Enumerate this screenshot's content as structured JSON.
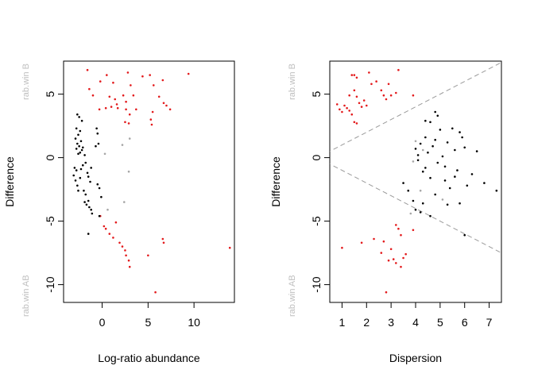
{
  "chart_data": [
    {
      "type": "scatter",
      "xlabel": "Log-ratio abundance",
      "ylabel": "Difference",
      "xlim": [
        -4.2,
        14.4
      ],
      "ylim": [
        -11.4,
        7.6
      ],
      "xticks": [
        "0",
        "5",
        "10"
      ],
      "xtick_values": [
        0,
        5,
        10
      ],
      "yticks": [
        "-10",
        "-5",
        "0",
        "5"
      ],
      "ytick_values": [
        -10,
        -5,
        0,
        5
      ],
      "group_labels": {
        "top": "rab.win B",
        "bottom": "rab.win AB"
      },
      "colors": {
        "significant": "#e31a1c",
        "nonsignificant": "#000000",
        "borderline": "#a6a6a6"
      },
      "series": [
        {
          "name": "",
          "color": "#e31a1c",
          "points": [
            [
              -1.6,
              6.9
            ],
            [
              -1.4,
              5.4
            ],
            [
              -1.0,
              4.9
            ],
            [
              -0.2,
              6.0
            ],
            [
              0.5,
              6.5
            ],
            [
              0.8,
              4.8
            ],
            [
              1.2,
              5.9
            ],
            [
              1.4,
              4.6
            ],
            [
              1.6,
              4.2
            ],
            [
              2.3,
              4.9
            ],
            [
              2.6,
              4.4
            ],
            [
              2.8,
              6.7
            ],
            [
              3.1,
              5.7
            ],
            [
              3.4,
              4.9
            ],
            [
              3.7,
              3.8
            ],
            [
              4.4,
              6.4
            ],
            [
              5.2,
              6.5
            ],
            [
              5.6,
              5.7
            ],
            [
              6.2,
              4.8
            ],
            [
              6.6,
              6.1
            ],
            [
              6.7,
              4.3
            ],
            [
              7.0,
              4.1
            ],
            [
              7.4,
              3.8
            ],
            [
              9.4,
              6.6
            ],
            [
              -0.3,
              3.8
            ],
            [
              0.4,
              3.9
            ],
            [
              1.0,
              4.0
            ],
            [
              1.7,
              3.9
            ],
            [
              2.6,
              3.8
            ],
            [
              3.0,
              3.4
            ],
            [
              5.5,
              3.6
            ],
            [
              5.3,
              3.0
            ],
            [
              2.5,
              2.8
            ],
            [
              2.9,
              2.7
            ],
            [
              5.4,
              2.6
            ],
            [
              -0.2,
              -4.6
            ],
            [
              0.2,
              -5.4
            ],
            [
              0.4,
              -5.6
            ],
            [
              0.8,
              -6.0
            ],
            [
              1.2,
              -6.3
            ],
            [
              1.5,
              -5.1
            ],
            [
              1.9,
              -6.7
            ],
            [
              2.2,
              -7.0
            ],
            [
              2.5,
              -7.3
            ],
            [
              2.6,
              -7.7
            ],
            [
              2.9,
              -8.1
            ],
            [
              3.0,
              -8.6
            ],
            [
              5.0,
              -7.7
            ],
            [
              5.8,
              -10.6
            ],
            [
              6.6,
              -6.4
            ],
            [
              6.7,
              -6.7
            ],
            [
              13.9,
              -7.1
            ]
          ]
        },
        {
          "name": "",
          "color": "#000000",
          "points": [
            [
              -2.7,
              3.4
            ],
            [
              -2.5,
              3.2
            ],
            [
              -2.2,
              2.9
            ],
            [
              -2.8,
              2.3
            ],
            [
              -2.4,
              2.1
            ],
            [
              -2.6,
              1.8
            ],
            [
              -2.9,
              1.5
            ],
            [
              -2.3,
              1.3
            ],
            [
              -2.7,
              1.1
            ],
            [
              -2.5,
              0.9
            ],
            [
              -2.8,
              0.7
            ],
            [
              -2.2,
              0.6
            ],
            [
              -2.4,
              0.4
            ],
            [
              -2.1,
              0.8
            ],
            [
              -1.9,
              0.2
            ],
            [
              -2.6,
              0.3
            ],
            [
              -3.0,
              -0.8
            ],
            [
              -2.8,
              -1.0
            ],
            [
              -3.1,
              -1.4
            ],
            [
              -2.9,
              -1.8
            ],
            [
              -2.7,
              -2.2
            ],
            [
              -2.6,
              -2.6
            ],
            [
              -2.4,
              -1.6
            ],
            [
              -2.3,
              -0.9
            ],
            [
              -2.1,
              -0.6
            ],
            [
              -1.8,
              -0.4
            ],
            [
              -1.6,
              -1.2
            ],
            [
              -1.5,
              -1.5
            ],
            [
              -1.3,
              -1.9
            ],
            [
              -1.2,
              -0.8
            ],
            [
              -1.9,
              -3.5
            ],
            [
              -1.7,
              -3.7
            ],
            [
              -1.5,
              -3.4
            ],
            [
              -1.4,
              -3.9
            ],
            [
              -1.2,
              -4.1
            ],
            [
              -1.1,
              -4.4
            ],
            [
              -1.5,
              -6.0
            ],
            [
              -0.6,
              2.3
            ],
            [
              -0.5,
              1.9
            ],
            [
              -0.4,
              1.1
            ],
            [
              -0.7,
              0.9
            ],
            [
              -0.5,
              -2.1
            ],
            [
              -0.3,
              -2.4
            ],
            [
              -0.1,
              -3.1
            ],
            [
              -0.3,
              -4.6
            ],
            [
              -2.0,
              -2.6
            ],
            [
              -1.8,
              -2.9
            ]
          ]
        },
        {
          "name": "",
          "color": "#a6a6a6",
          "points": [
            [
              0.3,
              0.3
            ],
            [
              2.2,
              1.0
            ],
            [
              2.4,
              -3.5
            ],
            [
              2.9,
              -1.1
            ],
            [
              0.6,
              -4.1
            ],
            [
              3.0,
              1.5
            ]
          ]
        }
      ]
    },
    {
      "type": "scatter",
      "xlabel": "Dispersion",
      "ylabel": "Difference",
      "xlim": [
        0.5,
        7.5
      ],
      "ylim": [
        -11.4,
        7.6
      ],
      "xticks": [
        "1",
        "2",
        "3",
        "4",
        "5",
        "6",
        "7"
      ],
      "xtick_values": [
        1,
        2,
        3,
        4,
        5,
        6,
        7
      ],
      "yticks": [
        "-10",
        "-5",
        "0",
        "5"
      ],
      "ytick_values": [
        -10,
        -5,
        0,
        5
      ],
      "group_labels": {
        "top": "rab.win B",
        "bottom": "rab.win AB"
      },
      "reference_lines": [
        {
          "slope": 1,
          "intercept": 0
        },
        {
          "slope": -1,
          "intercept": 0
        }
      ],
      "series": [
        {
          "name": "",
          "color": "#e31a1c",
          "points": [
            [
              0.8,
              4.2
            ],
            [
              0.9,
              3.8
            ],
            [
              1.0,
              3.6
            ],
            [
              1.1,
              4.1
            ],
            [
              1.2,
              3.9
            ],
            [
              1.3,
              3.7
            ],
            [
              1.4,
              6.5
            ],
            [
              1.5,
              6.5
            ],
            [
              1.6,
              6.3
            ],
            [
              1.5,
              5.3
            ],
            [
              1.3,
              4.9
            ],
            [
              1.6,
              4.8
            ],
            [
              1.7,
              4.3
            ],
            [
              1.8,
              4.0
            ],
            [
              1.9,
              4.5
            ],
            [
              2.0,
              4.1
            ],
            [
              2.1,
              6.7
            ],
            [
              2.2,
              5.8
            ],
            [
              2.4,
              6.0
            ],
            [
              2.6,
              5.3
            ],
            [
              2.7,
              4.9
            ],
            [
              2.8,
              4.6
            ],
            [
              2.9,
              5.8
            ],
            [
              3.0,
              4.9
            ],
            [
              3.3,
              6.9
            ],
            [
              1.4,
              3.4
            ],
            [
              1.5,
              2.8
            ],
            [
              1.6,
              2.7
            ],
            [
              3.9,
              4.9
            ],
            [
              3.2,
              5.1
            ],
            [
              1.0,
              -7.1
            ],
            [
              1.8,
              -6.7
            ],
            [
              2.3,
              -6.4
            ],
            [
              2.6,
              -7.5
            ],
            [
              2.7,
              -6.6
            ],
            [
              2.8,
              -10.6
            ],
            [
              3.0,
              -7.2
            ],
            [
              3.1,
              -8.0
            ],
            [
              3.2,
              -5.3
            ],
            [
              3.3,
              -5.6
            ],
            [
              3.4,
              -6.1
            ],
            [
              3.2,
              -8.3
            ],
            [
              3.4,
              -8.6
            ],
            [
              3.5,
              -7.9
            ],
            [
              3.6,
              -7.6
            ],
            [
              3.9,
              -5.7
            ],
            [
              2.9,
              -8.1
            ]
          ]
        },
        {
          "name": "",
          "color": "#000000",
          "points": [
            [
              4.0,
              0.7
            ],
            [
              4.1,
              -0.2
            ],
            [
              4.2,
              1.1
            ],
            [
              4.3,
              -1.1
            ],
            [
              4.4,
              1.6
            ],
            [
              4.5,
              0.4
            ],
            [
              4.6,
              -1.6
            ],
            [
              4.7,
              0.9
            ],
            [
              4.8,
              1.4
            ],
            [
              4.9,
              -0.4
            ],
            [
              5.0,
              2.2
            ],
            [
              5.1,
              0.1
            ],
            [
              5.2,
              -1.8
            ],
            [
              5.3,
              1.2
            ],
            [
              5.4,
              -2.4
            ],
            [
              5.5,
              2.3
            ],
            [
              5.6,
              0.6
            ],
            [
              5.7,
              -1.0
            ],
            [
              5.8,
              2.0
            ],
            [
              5.9,
              1.6
            ],
            [
              6.0,
              0.8
            ],
            [
              6.1,
              -2.2
            ],
            [
              6.3,
              -1.3
            ],
            [
              6.5,
              0.5
            ],
            [
              6.8,
              -2.0
            ],
            [
              7.3,
              -2.6
            ],
            [
              4.6,
              2.8
            ],
            [
              4.8,
              3.6
            ],
            [
              4.9,
              3.3
            ],
            [
              4.4,
              2.9
            ],
            [
              4.2,
              -4.3
            ],
            [
              3.9,
              -3.4
            ],
            [
              4.0,
              -4.1
            ],
            [
              3.7,
              -2.6
            ],
            [
              4.3,
              -3.6
            ],
            [
              4.6,
              -4.6
            ],
            [
              5.3,
              -3.7
            ],
            [
              5.8,
              -3.6
            ],
            [
              6.0,
              -6.1
            ],
            [
              3.5,
              -2.0
            ],
            [
              5.2,
              -0.7
            ],
            [
              4.1,
              0.2
            ],
            [
              5.6,
              -1.5
            ],
            [
              4.4,
              -0.8
            ],
            [
              4.8,
              -2.9
            ]
          ]
        },
        {
          "name": "",
          "color": "#a6a6a6",
          "points": [
            [
              3.9,
              -0.3
            ],
            [
              4.0,
              1.3
            ],
            [
              3.8,
              -4.4
            ],
            [
              4.2,
              -2.6
            ],
            [
              4.3,
              0.6
            ],
            [
              5.1,
              -3.3
            ]
          ]
        }
      ]
    }
  ]
}
